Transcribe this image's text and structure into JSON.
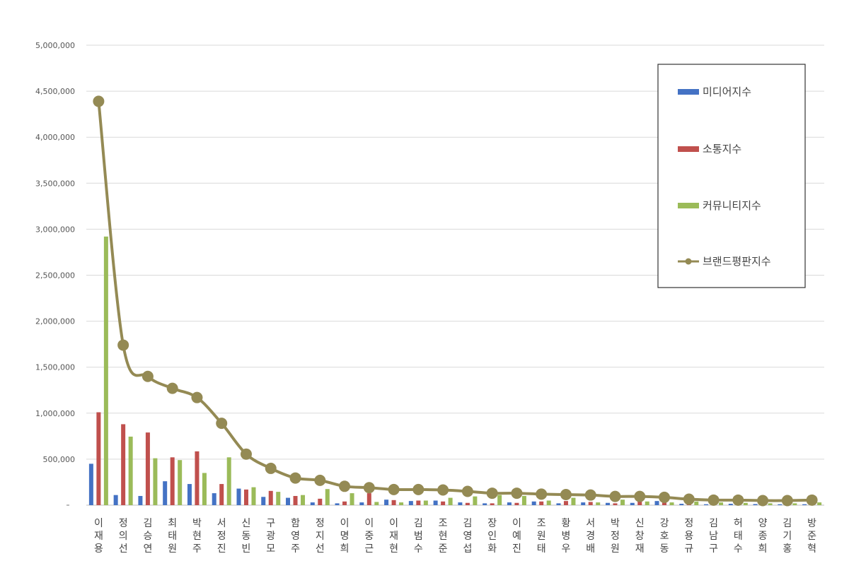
{
  "chart_data": {
    "type": "bar",
    "categories": [
      "이재용",
      "정의선",
      "김승연",
      "최태원",
      "박현주",
      "서정진",
      "신동빈",
      "구광모",
      "함영주",
      "정지선",
      "이명희",
      "이중근",
      "이재현",
      "김범수",
      "조현준",
      "김영섭",
      "장인화",
      "이예진",
      "조원태",
      "황병우",
      "서경배",
      "박정원",
      "신창재",
      "강호동",
      "정용규",
      "김남구",
      "허태수",
      "양종희",
      "김기홍",
      "방준혁"
    ],
    "series": [
      {
        "name": "미디어지수",
        "color": "#4472c4",
        "values": [
          450000,
          110000,
          100000,
          260000,
          230000,
          130000,
          180000,
          90000,
          80000,
          30000,
          20000,
          30000,
          60000,
          45000,
          50000,
          30000,
          20000,
          30000,
          40000,
          20000,
          30000,
          25000,
          25000,
          45000,
          15000,
          10000,
          15000,
          12000,
          10000,
          10000
        ]
      },
      {
        "name": "소통지수",
        "color": "#c0504d",
        "values": [
          1010000,
          880000,
          790000,
          520000,
          585000,
          230000,
          170000,
          155000,
          100000,
          70000,
          40000,
          130000,
          55000,
          50000,
          40000,
          25000,
          20000,
          25000,
          40000,
          45000,
          35000,
          20000,
          40000,
          30000,
          20000,
          15000,
          15000,
          12000,
          12000,
          10000
        ]
      },
      {
        "name": "커뮤니티지수",
        "color": "#9bbb59",
        "values": [
          2920000,
          745000,
          510000,
          490000,
          350000,
          520000,
          195000,
          145000,
          110000,
          175000,
          130000,
          35000,
          30000,
          50000,
          80000,
          95000,
          110000,
          100000,
          50000,
          80000,
          30000,
          60000,
          40000,
          30000,
          40000,
          30000,
          25000,
          20000,
          20000,
          30000
        ]
      },
      {
        "name": "브랜드평판지수",
        "color": "#948a54",
        "values": [
          4390000,
          1740000,
          1400000,
          1270000,
          1170000,
          890000,
          555000,
          400000,
          295000,
          270000,
          205000,
          190000,
          170000,
          170000,
          165000,
          150000,
          130000,
          130000,
          120000,
          115000,
          110000,
          95000,
          95000,
          85000,
          65000,
          55000,
          55000,
          50000,
          50000,
          55000
        ]
      }
    ],
    "ylim": [
      0,
      5000000
    ],
    "yticks": [
      "",
      "500,000",
      "1,000,000",
      "1,500,000",
      "2,000,000",
      "2,500,000",
      "3,000,000",
      "3,500,000",
      "4,000,000",
      "4,500,000",
      "5,000,000"
    ],
    "grid": true,
    "legend_position": "top-right"
  }
}
